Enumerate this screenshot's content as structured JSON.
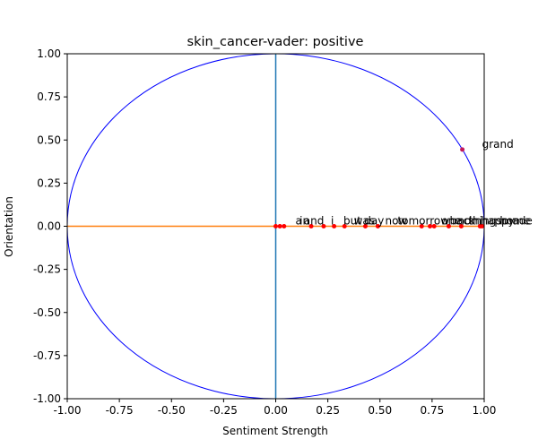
{
  "chart_data": {
    "type": "scatter",
    "title": "skin_cancer-vader: positive",
    "xlabel": "Sentiment Strength",
    "ylabel": "Orientation",
    "xlim": [
      -1.0,
      1.0
    ],
    "ylim": [
      -1.0,
      1.0
    ],
    "xticks": [
      "-1.00",
      "-0.75",
      "-0.50",
      "-0.25",
      "0.00",
      "0.25",
      "0.50",
      "0.75",
      "1.00"
    ],
    "yticks": [
      "-1.00",
      "-0.75",
      "-0.50",
      "-0.25",
      "0.00",
      "0.25",
      "0.50",
      "0.75",
      "1.00"
    ],
    "grid": false,
    "unit_circle": true,
    "colors": {
      "circle": "#0000ff",
      "vertical_line": "#1f77b4",
      "horizontal_line": "#ff7f0e",
      "points": "#ff0000",
      "grand_point": "#c2185b"
    },
    "points": [
      {
        "label": "a",
        "x": 0.0,
        "y": 0.0
      },
      {
        "label": "in",
        "x": 0.02,
        "y": 0.0
      },
      {
        "label": "and",
        "x": 0.04,
        "y": 0.0
      },
      {
        "label": "i",
        "x": 0.17,
        "y": 0.0
      },
      {
        "label": "but",
        "x": 0.23,
        "y": 0.0
      },
      {
        "label": "was",
        "x": 0.28,
        "y": 0.0
      },
      {
        "label": "day",
        "x": 0.33,
        "y": 0.0
      },
      {
        "label": "now",
        "x": 0.43,
        "y": 0.0
      },
      {
        "label": "tomorrow",
        "x": 0.49,
        "y": 0.0
      },
      {
        "label": "one",
        "x": 0.7,
        "y": 0.0
      },
      {
        "label": "back",
        "x": 0.74,
        "y": 0.0
      },
      {
        "label": "mom",
        "x": 0.76,
        "y": 0.0
      },
      {
        "label": "things",
        "x": 0.83,
        "y": 0.0
      },
      {
        "label": "happy",
        "x": 0.89,
        "y": 0.0
      },
      {
        "label": "home",
        "x": 0.98,
        "y": 0.0
      },
      {
        "label": "made",
        "x": 0.99,
        "y": 0.0
      },
      {
        "label": "grand",
        "x": 0.895,
        "y": 0.445
      }
    ]
  }
}
